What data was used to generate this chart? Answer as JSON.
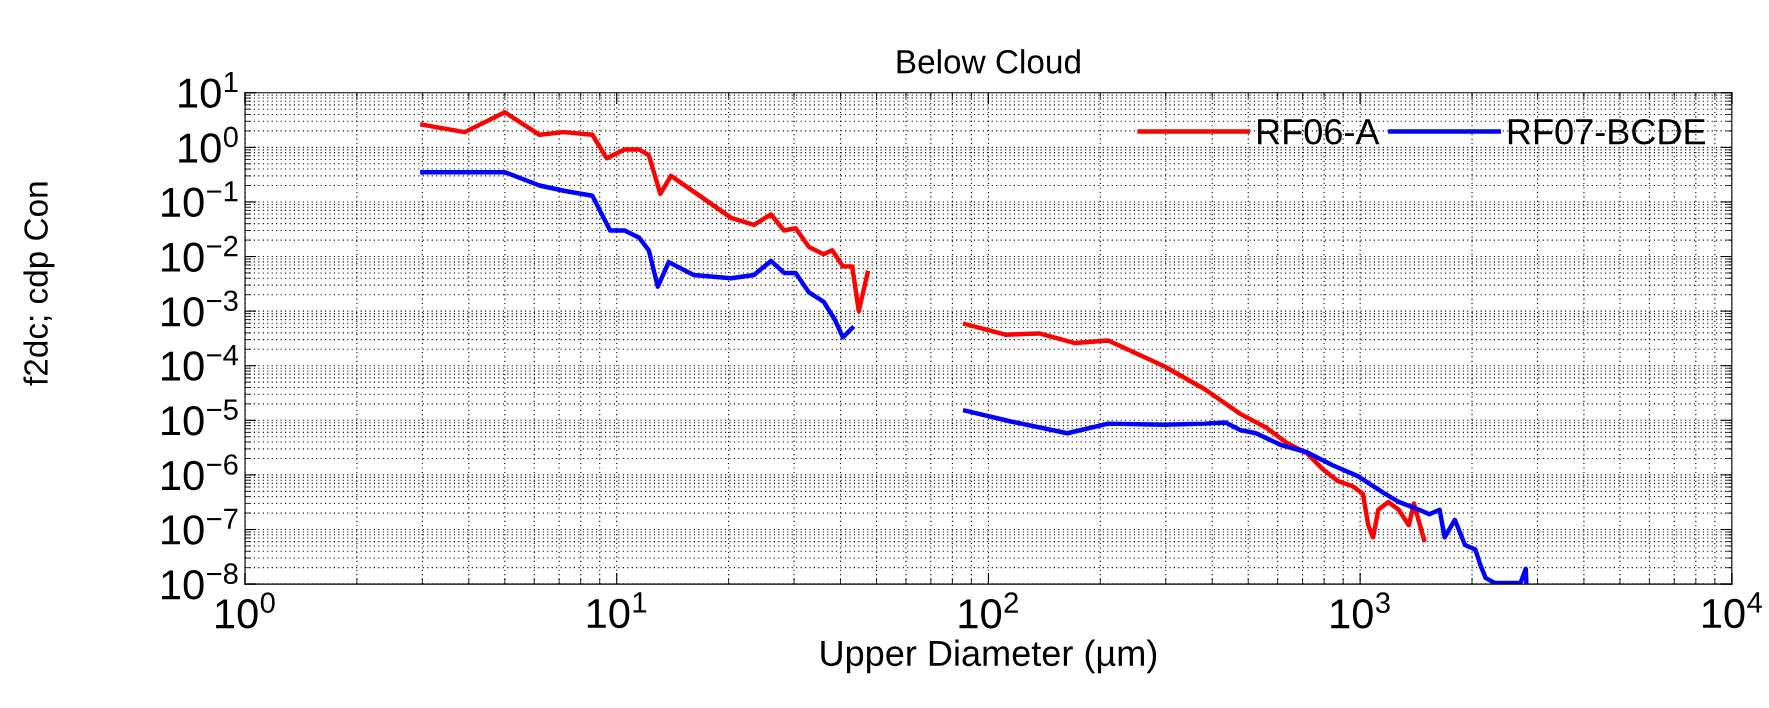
{
  "chart_data": {
    "type": "line",
    "title": "Below Cloud",
    "xlabel": "Upper Diameter (µm)",
    "ylabel": "f2dc; cdp Con",
    "log": "xy",
    "grid": true,
    "legend": "top right",
    "marker": "none",
    "line_style": "solid",
    "xlim": [
      1,
      10000
    ],
    "ylim": [
      1e-08,
      10
    ],
    "xticks": [
      {
        "value": 1,
        "label": "10$^{0}$"
      },
      {
        "value": 10,
        "label": "10$^{1}$"
      },
      {
        "value": 100,
        "label": "10$^{2}$"
      },
      {
        "value": 1000,
        "label": "10$^{3}$"
      },
      {
        "value": 10000,
        "label": "10$^{4}$"
      }
    ],
    "yticks": [
      {
        "value": 1e-08,
        "label": "10$^{−8}$"
      },
      {
        "value": 1e-07,
        "label": "10$^{−7}$"
      },
      {
        "value": 1e-06,
        "label": "10$^{−6}$"
      },
      {
        "value": 1e-05,
        "label": "10$^{−5}$"
      },
      {
        "value": 0.0001,
        "label": "10$^{−4}$"
      },
      {
        "value": 0.001,
        "label": "10$^{−3}$"
      },
      {
        "value": 0.01,
        "label": "10$^{−2}$"
      },
      {
        "value": 0.1,
        "label": "10$^{−1}$"
      },
      {
        "value": 1,
        "label": "10$^{0}$"
      },
      {
        "value": 10,
        "label": "10$^{1}$"
      }
    ],
    "series": [
      {
        "name": "RF06-A",
        "color": "#ff0000",
        "x": [
          3,
          3.9,
          5,
          6.2,
          7.2,
          8.6,
          9.4,
          10.5,
          11.5,
          12.2,
          13.1,
          14,
          17.3,
          20.3,
          23.4,
          26,
          28.2,
          30.3,
          32.9,
          36,
          38,
          40.6,
          43,
          44.8,
          47.3,
          65,
          86.6,
          111,
          137,
          171,
          210,
          297,
          382,
          477,
          558,
          634,
          719,
          791,
          869,
          955,
          1018,
          1051,
          1084,
          1119,
          1191,
          1270,
          1352,
          1395,
          1486
        ],
        "values": [
          2.6,
          1.9,
          4.4,
          1.7,
          1.9,
          1.7,
          0.63,
          0.91,
          0.91,
          0.72,
          0.14,
          0.3,
          0.11,
          0.051,
          0.038,
          0.059,
          0.03,
          0.033,
          0.015,
          0.011,
          0.013,
          0.0066,
          0.0066,
          0.001,
          0.005,
          null,
          0.00058,
          0.00037,
          0.00039,
          0.00026,
          0.00029,
          9.8e-05,
          3.7e-05,
          1.3e-05,
          7.4e-06,
          3.9e-06,
          2.5e-06,
          1.3e-06,
          7.8e-07,
          6.2e-07,
          4.5e-07,
          1.2e-07,
          7.2e-08,
          2.3e-07,
          3.2e-07,
          2.3e-07,
          1.2e-07,
          3e-07,
          6.5e-08
        ]
      },
      {
        "name": "RF07-BCDE",
        "color": "#0000ff",
        "x": [
          3,
          5,
          6.2,
          7.2,
          8.6,
          9.6,
          10.5,
          11.5,
          12.2,
          12.9,
          13.8,
          16.1,
          20.3,
          23.4,
          26,
          28.2,
          30.3,
          32.9,
          36,
          38.7,
          40.6,
          43,
          65,
          86.6,
          115,
          163,
          210,
          297,
          382,
          434,
          477,
          524,
          614,
          719,
          843,
          986,
          1156,
          1270,
          1442,
          1535,
          1636,
          1688,
          1798,
          1915,
          2041,
          2108,
          2175,
          2300,
          2500,
          2700,
          2790,
          2800
        ],
        "values": [
          0.35,
          0.35,
          0.2,
          0.16,
          0.13,
          0.03,
          0.03,
          0.022,
          0.013,
          0.0028,
          0.0079,
          0.0046,
          0.004,
          0.0046,
          0.0083,
          0.005,
          0.005,
          0.0022,
          0.0015,
          0.00068,
          0.00033,
          0.00049,
          null,
          1.5e-05,
          9.5e-06,
          5.8e-06,
          8.7e-06,
          8.3e-06,
          8.7e-06,
          9.1e-06,
          6.6e-06,
          5.8e-06,
          3.5e-06,
          2.6e-06,
          1.5e-06,
          9.5e-07,
          4.7e-07,
          3.2e-07,
          2.3e-07,
          1.9e-07,
          2.3e-07,
          7.2e-08,
          1.5e-07,
          5.2e-08,
          4.3e-08,
          2.2e-08,
          1.3e-08,
          1.05e-08,
          1.05e-08,
          1.05e-08,
          1.9e-08,
          1.05e-08
        ]
      }
    ]
  }
}
